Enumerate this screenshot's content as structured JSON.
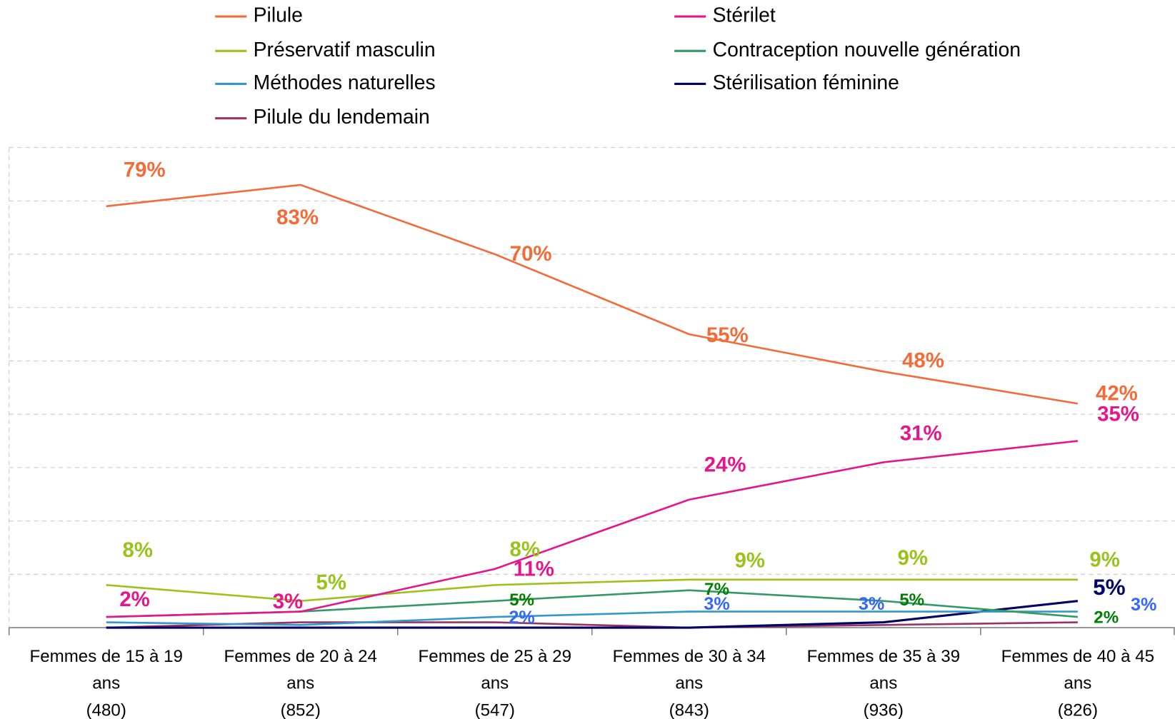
{
  "chart_data": {
    "type": "line",
    "categories": [
      "Femmes de 15 à 19 ans (480)",
      "Femmes de 20 à 24 ans (852)",
      "Femmes de 25 à 29 ans (547)",
      "Femmes de 30 à 34 ans (843)",
      "Femmes de 35 à 39 ans (936)",
      "Femmes de 40 à 45 ans (826)"
    ],
    "ylim": [
      0,
      90
    ],
    "yticks": [
      0,
      10,
      20,
      30,
      40,
      50,
      60,
      70,
      80,
      90
    ],
    "grid": true,
    "legend": "top",
    "series": [
      {
        "name": "Pilule",
        "color": "#f26b38",
        "label_color": "#f26b38",
        "values": [
          79,
          83,
          70,
          55,
          48,
          42
        ],
        "value_labels": [
          "79%",
          "83%",
          "70%",
          "55%",
          "48%",
          "42%"
        ]
      },
      {
        "name": "Stérilet",
        "color": "#e5168c",
        "label_color": "#e5168c",
        "values": [
          2,
          3,
          11,
          24,
          31,
          35
        ],
        "value_labels": [
          "2%",
          "3%",
          "11%",
          "24%",
          "31%",
          "35%"
        ]
      },
      {
        "name": "Préservatif masculin",
        "color": "#9bc31c",
        "label_color": "#99c21a",
        "values": [
          8,
          5,
          8,
          9,
          9,
          9
        ],
        "value_labels": [
          "8%",
          "5%",
          "8%",
          "9%",
          "9%",
          "9%"
        ]
      },
      {
        "name": "Contraception nouvelle génération",
        "color": "#339966",
        "label_color": "#008000",
        "values": [
          2,
          3,
          5,
          7,
          5,
          2
        ],
        "value_labels": [
          null,
          null,
          "5%",
          "7%",
          "5%",
          "2%"
        ]
      },
      {
        "name": "Méthodes naturelles",
        "color": "#3399cc",
        "label_color": "#3366ff",
        "values": [
          1,
          0.5,
          2,
          3,
          3,
          3
        ],
        "value_labels": [
          null,
          null,
          "2%",
          "3%",
          "3%",
          "3%"
        ]
      },
      {
        "name": "Stérilisation féminine",
        "color": "#000066",
        "label_color": "#000066",
        "values": [
          0,
          0,
          0,
          0,
          1,
          5
        ],
        "value_labels": [
          null,
          null,
          null,
          null,
          null,
          "5%"
        ]
      },
      {
        "name": "Pilule du lendemain",
        "color": "#993366",
        "label_color": "#993366",
        "values": [
          0,
          1,
          1,
          0,
          0.5,
          1
        ],
        "value_labels": [
          null,
          null,
          null,
          null,
          null,
          null
        ]
      }
    ]
  }
}
